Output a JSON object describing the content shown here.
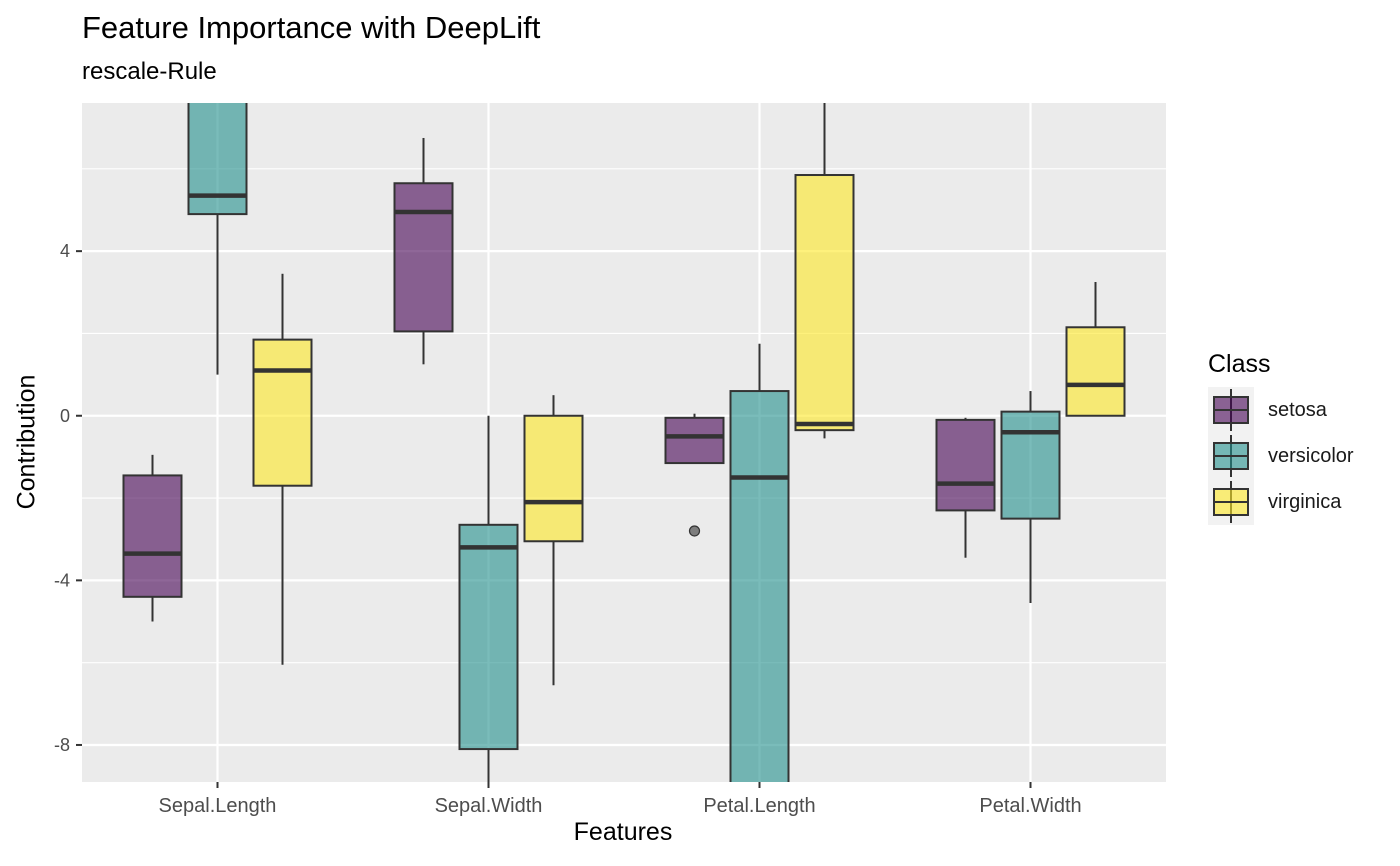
{
  "chart_data": {
    "type": "boxplot",
    "title": "Feature Importance with DeepLift",
    "subtitle": "rescale-Rule",
    "xlabel": "Features",
    "ylabel": "Contribution",
    "categories": [
      "Sepal.Length",
      "Sepal.Width",
      "Petal.Length",
      "Petal.Width"
    ],
    "ylim": [
      -8.9,
      7.6
    ],
    "yticks": [
      -8,
      -4,
      0,
      4
    ],
    "ytick_labels": [
      "-8",
      "-4",
      "0",
      "4"
    ],
    "legend_title": "Class",
    "legend_position": "right",
    "grid": true,
    "series": [
      {
        "name": "setosa",
        "color": "#440154",
        "boxes": [
          {
            "category": "Sepal.Length",
            "whisker_low": -5.0,
            "q1": -4.4,
            "median": -3.35,
            "q3": -1.45,
            "whisker_high": -0.95
          },
          {
            "category": "Sepal.Width",
            "whisker_low": 1.25,
            "q1": 2.05,
            "median": 4.95,
            "q3": 5.65,
            "whisker_high": 6.75
          },
          {
            "category": "Petal.Length",
            "whisker_low": -1.15,
            "q1": -1.15,
            "median": -0.5,
            "q3": -0.05,
            "whisker_high": 0.05,
            "outliers": [
              -2.8
            ]
          },
          {
            "category": "Petal.Width",
            "whisker_low": -3.45,
            "q1": -2.3,
            "median": -1.65,
            "q3": -0.1,
            "whisker_high": -0.05
          }
        ]
      },
      {
        "name": "versicolor",
        "color": "#21908C",
        "boxes": [
          {
            "category": "Sepal.Length",
            "whisker_low": 1.0,
            "q1": 4.9,
            "median": 5.35,
            "q3": 7.9,
            "whisker_high": 9.0
          },
          {
            "category": "Sepal.Width",
            "whisker_low": -9.2,
            "q1": -8.1,
            "median": -3.2,
            "q3": -2.65,
            "whisker_high": 0.0
          },
          {
            "category": "Petal.Length",
            "whisker_low": -10.5,
            "q1": -9.5,
            "median": -1.5,
            "q3": 0.6,
            "whisker_high": 1.75
          },
          {
            "category": "Petal.Width",
            "whisker_low": -4.55,
            "q1": -2.5,
            "median": -0.4,
            "q3": 0.1,
            "whisker_high": 0.6
          }
        ]
      },
      {
        "name": "virginica",
        "color": "#FDE725",
        "boxes": [
          {
            "category": "Sepal.Length",
            "whisker_low": -6.05,
            "q1": -1.7,
            "median": 1.1,
            "q3": 1.85,
            "whisker_high": 3.45
          },
          {
            "category": "Sepal.Width",
            "whisker_low": -6.55,
            "q1": -3.05,
            "median": -2.1,
            "q3": 0.0,
            "whisker_high": 0.5
          },
          {
            "category": "Petal.Length",
            "whisker_low": -0.55,
            "q1": -0.35,
            "median": -0.2,
            "q3": 5.85,
            "whisker_high": 8.0
          },
          {
            "category": "Petal.Width",
            "whisker_low": 0.0,
            "q1": 0.0,
            "median": 0.75,
            "q3": 2.15,
            "whisker_high": 3.25
          }
        ]
      }
    ]
  }
}
